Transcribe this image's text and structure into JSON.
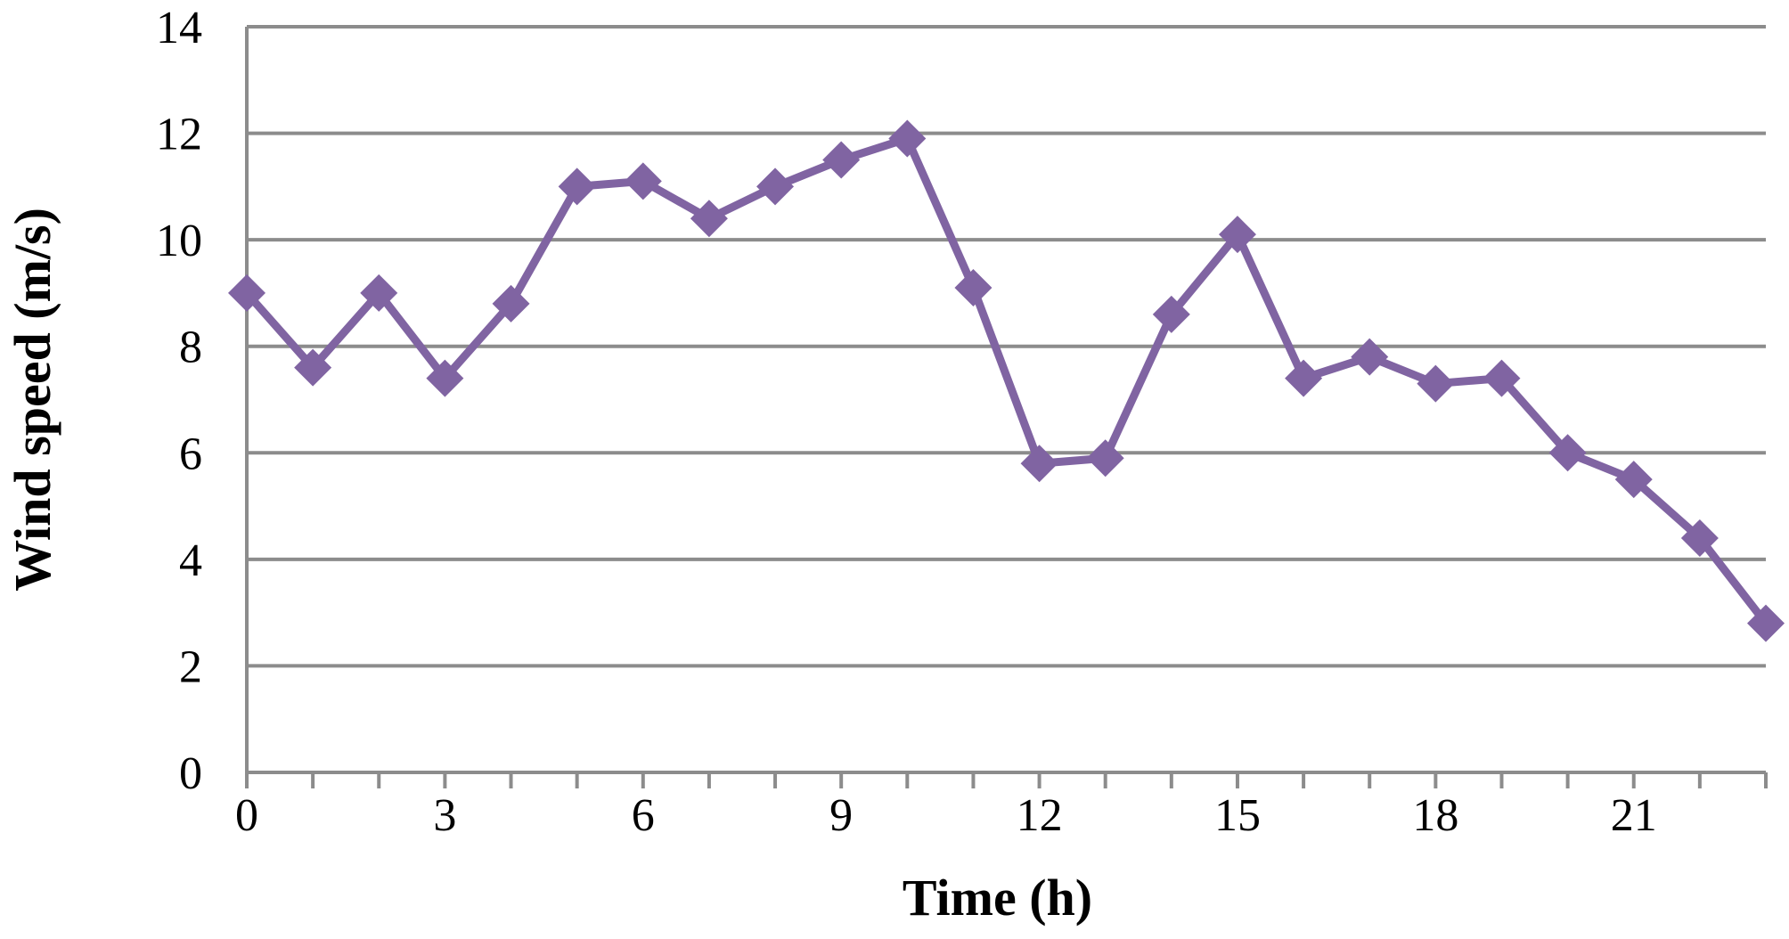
{
  "chart_data": {
    "type": "line",
    "title": "",
    "xlabel": "Time (h)",
    "ylabel": "Wind speed (m/s)",
    "x": [
      0,
      1,
      2,
      3,
      4,
      5,
      6,
      7,
      8,
      9,
      10,
      11,
      12,
      13,
      14,
      15,
      16,
      17,
      18,
      19,
      20,
      21,
      22,
      23
    ],
    "series": [
      {
        "values": [
          9.0,
          7.6,
          9.0,
          7.4,
          8.8,
          11.0,
          11.1,
          10.4,
          11.0,
          11.5,
          11.9,
          9.1,
          5.8,
          5.9,
          8.6,
          10.1,
          7.4,
          7.8,
          7.3,
          7.4,
          6.0,
          5.5,
          4.4,
          2.8
        ],
        "color": "#8064A2",
        "marker": "diamond"
      }
    ],
    "xlim": [
      0,
      23
    ],
    "ylim": [
      0,
      14
    ],
    "yticks": [
      0,
      2,
      4,
      6,
      8,
      10,
      12,
      14
    ],
    "xticks": [
      0,
      3,
      6,
      9,
      12,
      15,
      18,
      21
    ],
    "grid": true,
    "gridColor": "#8C8C8C",
    "axisColor": "#8C8C8C"
  }
}
